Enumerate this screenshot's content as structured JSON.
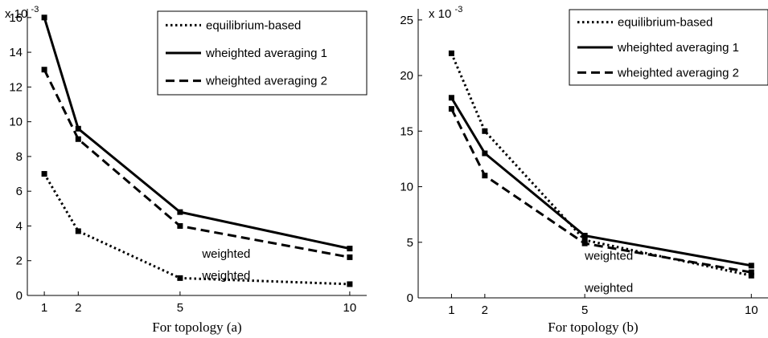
{
  "chart_data": [
    {
      "type": "line",
      "xlabel": "For topology (a)",
      "exponent_label": "x 10",
      "exponent_sup": "-3",
      "x_ticks": [
        1,
        2,
        5,
        10
      ],
      "y_ticks": [
        0,
        2,
        4,
        6,
        8,
        10,
        12,
        14,
        16
      ],
      "xlim": [
        0.5,
        10.5
      ],
      "ylim": [
        0,
        16.5
      ],
      "legend_position": "top-right",
      "series": [
        {
          "name": "equilibrium-based",
          "style": "dotted",
          "x": [
            1,
            2,
            5,
            10
          ],
          "y": [
            7,
            3.7,
            1,
            0.65
          ]
        },
        {
          "name": "wheighted averaging 1",
          "style": "solid",
          "x": [
            1,
            2,
            5,
            10
          ],
          "y": [
            16,
            9.6,
            4.8,
            2.7
          ]
        },
        {
          "name": "wheighted averaging 2",
          "style": "dashed",
          "x": [
            1,
            2,
            5,
            10
          ],
          "y": [
            13,
            9,
            4,
            2.2
          ]
        }
      ],
      "annotations": [
        {
          "text": "weighted",
          "x": 5.65,
          "y": 2.4
        },
        {
          "text": "weighted",
          "x": 5.65,
          "y": 1.15
        }
      ]
    },
    {
      "type": "line",
      "xlabel": "For topology (b)",
      "exponent_label": "x 10",
      "exponent_sup": "-3",
      "x_ticks": [
        1,
        2,
        5,
        10
      ],
      "y_ticks": [
        0,
        5,
        10,
        15,
        20,
        25
      ],
      "xlim": [
        0,
        10.5
      ],
      "ylim": [
        0,
        26
      ],
      "legend_position": "top-right",
      "series": [
        {
          "name": "equilibrium-based",
          "style": "dotted",
          "x": [
            1,
            2,
            5,
            10
          ],
          "y": [
            22,
            15,
            5.2,
            2
          ]
        },
        {
          "name": "wheighted averaging 1",
          "style": "solid",
          "x": [
            1,
            2,
            5,
            10
          ],
          "y": [
            18,
            13,
            5.6,
            2.9
          ]
        },
        {
          "name": "wheighted averaging 2",
          "style": "dashed",
          "x": [
            1,
            2,
            5,
            10
          ],
          "y": [
            17,
            11,
            4.9,
            2.3
          ]
        }
      ],
      "annotations": [
        {
          "text": "weighted",
          "x": 5,
          "y": 3.8
        },
        {
          "text": "weighted",
          "x": 5,
          "y": 0.9
        }
      ]
    }
  ]
}
